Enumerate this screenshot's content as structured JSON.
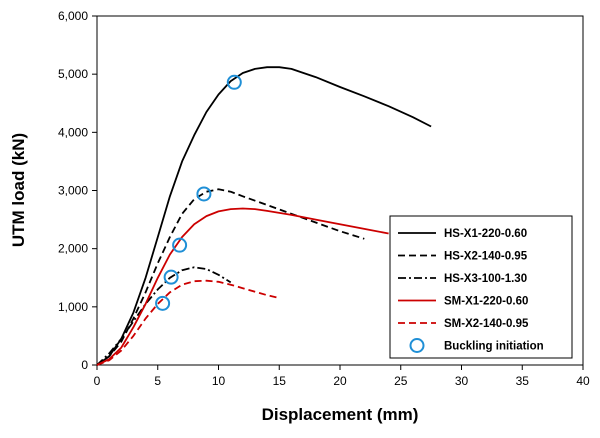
{
  "chart_data": {
    "type": "line",
    "title": "",
    "xlabel": "Displacement (mm)",
    "ylabel": "UTM load (kN)",
    "xlim": [
      0,
      40
    ],
    "ylim": [
      0,
      6000
    ],
    "xticks": [
      0,
      5,
      10,
      15,
      20,
      25,
      30,
      35,
      40
    ],
    "xtick_labels": [
      "0",
      "5",
      "10",
      "15",
      "20",
      "25",
      "30",
      "35",
      "40"
    ],
    "yticks": [
      0,
      1000,
      2000,
      3000,
      4000,
      5000,
      6000
    ],
    "ytick_labels": [
      "0",
      "1,000",
      "2,000",
      "3,000",
      "4,000",
      "5,000",
      "6,000"
    ],
    "grid": false,
    "legend_position": "bottom-right",
    "series": [
      {
        "name": "HS-X1-220-0.60",
        "color": "#000000",
        "dash": "solid",
        "x": [
          0,
          1,
          2,
          3,
          4,
          5,
          6,
          7,
          8,
          9,
          10,
          11,
          12,
          13,
          14,
          15,
          16,
          17,
          18,
          20,
          22,
          24,
          26,
          27.5
        ],
        "y": [
          0,
          150,
          450,
          900,
          1500,
          2200,
          2900,
          3500,
          3950,
          4350,
          4650,
          4880,
          5020,
          5090,
          5120,
          5120,
          5090,
          5020,
          4950,
          4780,
          4620,
          4450,
          4260,
          4100
        ]
      },
      {
        "name": "HS-X2-140-0.95",
        "color": "#000000",
        "dash": "dashed",
        "x": [
          0,
          1,
          2,
          3,
          4,
          5,
          6,
          7,
          8,
          9,
          10,
          11,
          12,
          14,
          16,
          18,
          20,
          22
        ],
        "y": [
          0,
          150,
          400,
          800,
          1250,
          1750,
          2200,
          2600,
          2850,
          2980,
          3020,
          2980,
          2900,
          2750,
          2600,
          2450,
          2300,
          2170
        ]
      },
      {
        "name": "HS-X3-100-1.30",
        "color": "#000000",
        "dash": "dashdot",
        "x": [
          0,
          1,
          2,
          3,
          4,
          5,
          6,
          7,
          8,
          9,
          10,
          11
        ],
        "y": [
          0,
          200,
          450,
          750,
          1050,
          1300,
          1500,
          1630,
          1680,
          1650,
          1550,
          1420
        ]
      },
      {
        "name": "SM-X1-220-0.60",
        "color": "#cc0000",
        "dash": "solid",
        "x": [
          0,
          1,
          2,
          3,
          4,
          5,
          6,
          7,
          8,
          9,
          10,
          11,
          12,
          13,
          14,
          16,
          18,
          20,
          22,
          24
        ],
        "y": [
          0,
          100,
          300,
          650,
          1050,
          1500,
          1900,
          2200,
          2420,
          2560,
          2640,
          2680,
          2690,
          2680,
          2650,
          2580,
          2500,
          2420,
          2340,
          2260
        ]
      },
      {
        "name": "SM-X2-140-0.95",
        "color": "#cc0000",
        "dash": "dashed",
        "x": [
          0,
          1,
          2,
          3,
          4,
          5,
          6,
          7,
          8,
          9,
          10,
          11,
          12,
          13,
          14,
          15
        ],
        "y": [
          0,
          80,
          250,
          500,
          800,
          1050,
          1250,
          1380,
          1440,
          1450,
          1430,
          1380,
          1320,
          1260,
          1200,
          1150
        ]
      }
    ],
    "markers": {
      "name": "Buckling initiation",
      "color": "#1f8fd6",
      "points": [
        {
          "x": 11.3,
          "y": 4860
        },
        {
          "x": 8.8,
          "y": 2940
        },
        {
          "x": 6.8,
          "y": 2060
        },
        {
          "x": 6.1,
          "y": 1510
        },
        {
          "x": 5.4,
          "y": 1060
        }
      ]
    }
  }
}
